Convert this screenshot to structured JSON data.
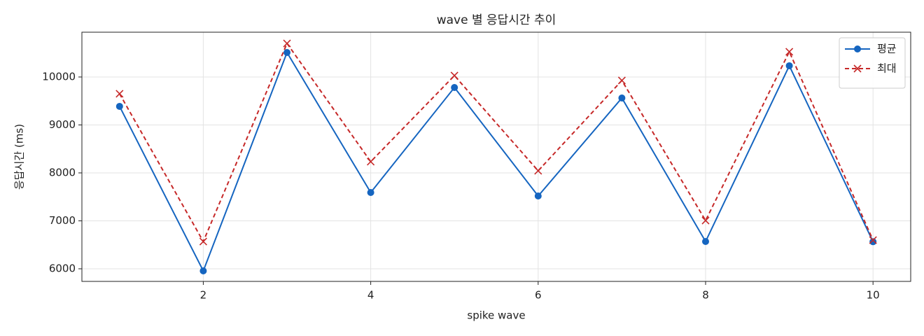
{
  "chart_data": {
    "type": "line",
    "title": "wave 별 응답시간 추이",
    "x_label": "spike wave",
    "y_label": "응답시간 (ms)",
    "x": [
      1,
      2,
      3,
      4,
      5,
      6,
      7,
      8,
      9,
      10
    ],
    "series": [
      {
        "name": "평균",
        "color": "#1565c0",
        "marker": "circle",
        "linestyle": "solid",
        "values": [
          9387,
          5956,
          10511,
          7591,
          9781,
          7518,
          9562,
          6569,
          10234,
          6565
        ]
      },
      {
        "name": "최대",
        "color": "#c62828",
        "marker": "x",
        "linestyle": "dashed",
        "values": [
          9650,
          6569,
          10700,
          8234,
          10029,
          8044,
          9927,
          7007,
          10526,
          6598
        ]
      }
    ],
    "xlim": [
      0.55,
      10.45
    ],
    "xticks": [
      2,
      4,
      6,
      8,
      10
    ],
    "ylim": [
      5737,
      10934
    ],
    "yticks": [
      6000,
      7000,
      8000,
      9000,
      10000
    ],
    "grid": true,
    "legend": "upper right"
  }
}
